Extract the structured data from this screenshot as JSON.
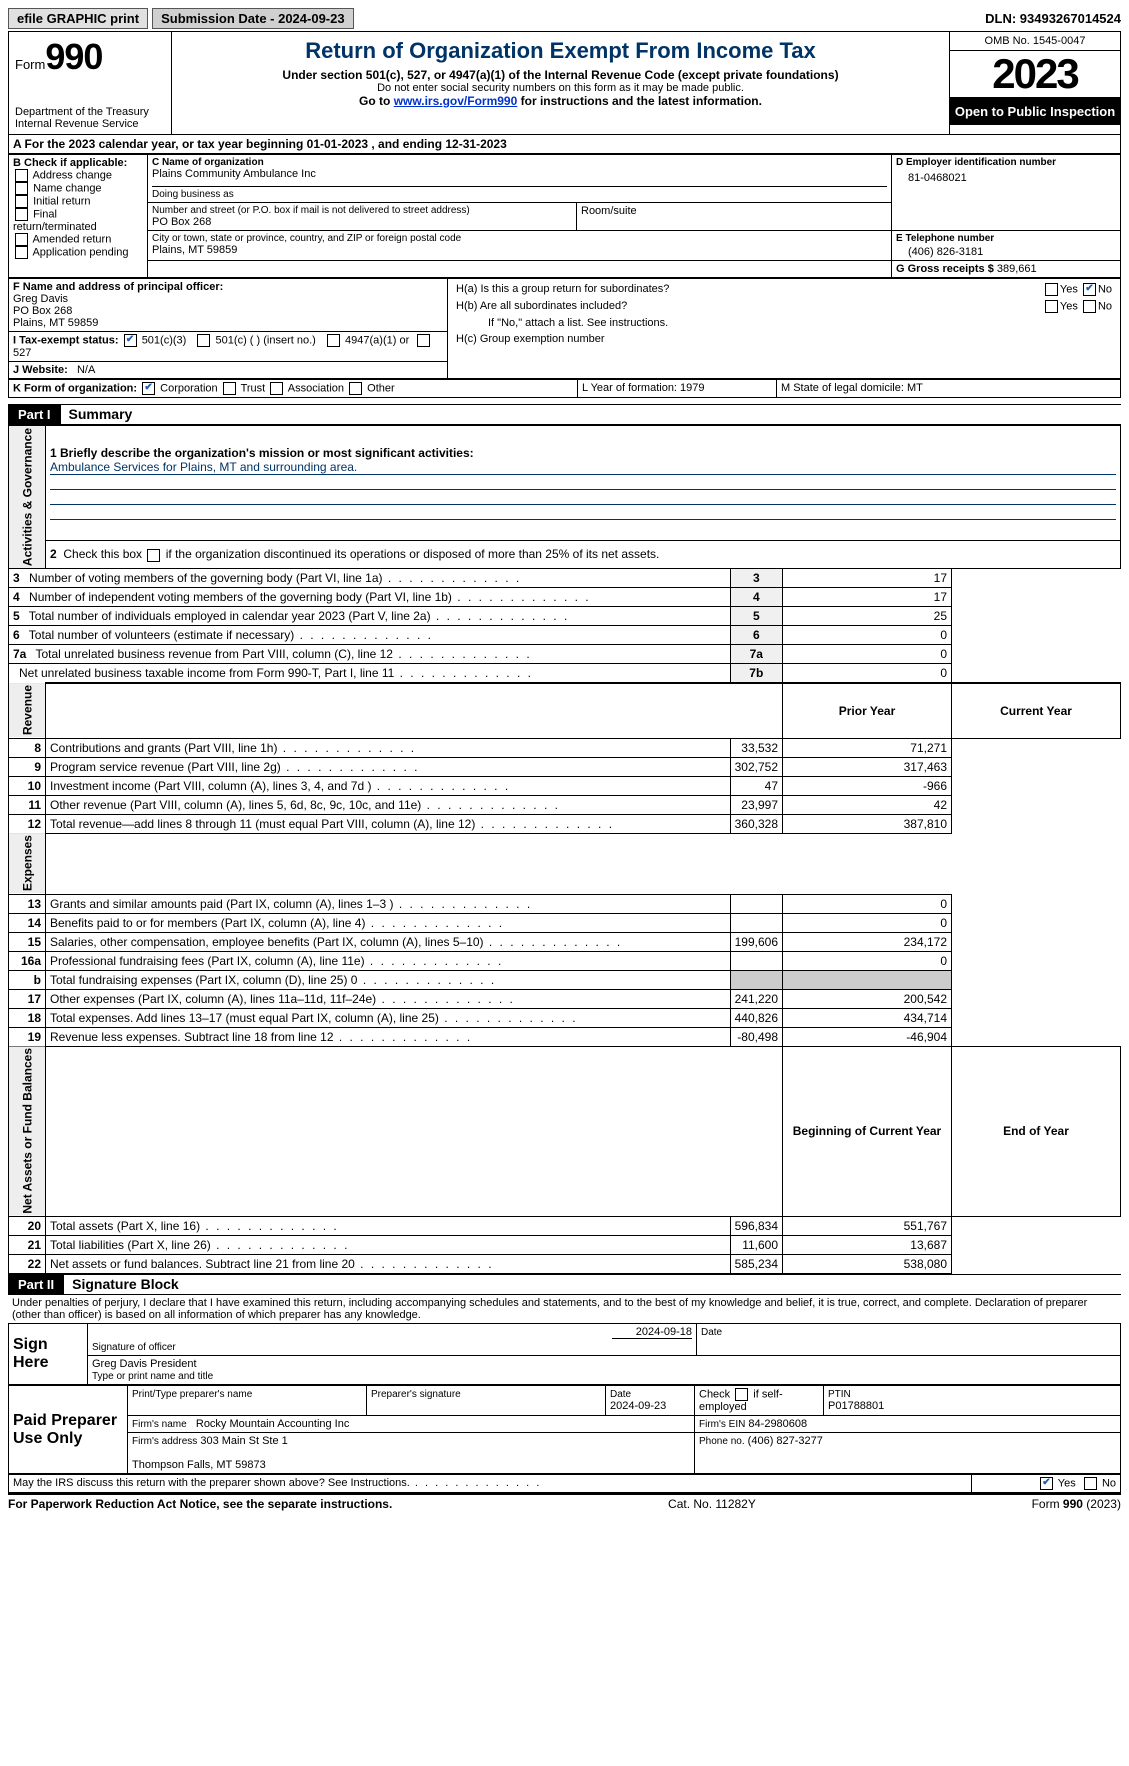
{
  "topbar": {
    "efile_btn": "efile GRAPHIC print",
    "subm_label": "Submission Date - 2024-09-23",
    "dln_label": "DLN: 93493267014524"
  },
  "header": {
    "form_word": "Form",
    "form_num": "990",
    "dept": "Department of the Treasury\nInternal Revenue Service",
    "title": "Return of Organization Exempt From Income Tax",
    "sub1": "Under section 501(c), 527, or 4947(a)(1) of the Internal Revenue Code (except private foundations)",
    "sub2": "Do not enter social security numbers on this form as it may be made public.",
    "sub3_pre": "Go to ",
    "sub3_link": "www.irs.gov/Form990",
    "sub3_post": " for instructions and the latest information.",
    "omb": "OMB No. 1545-0047",
    "year": "2023",
    "open": "Open to Public Inspection"
  },
  "lineA": "A For the 2023 calendar year, or tax year beginning 01-01-2023   , and ending 12-31-2023",
  "B": {
    "label": "B Check if applicable:",
    "opts": [
      "Address change",
      "Name change",
      "Initial return",
      "Final return/terminated",
      "Amended return",
      "Application pending"
    ]
  },
  "C": {
    "name_lbl": "C Name of organization",
    "name": "Plains Community Ambulance Inc",
    "dba_lbl": "Doing business as",
    "street_lbl": "Number and street (or P.O. box if mail is not delivered to street address)",
    "room_lbl": "Room/suite",
    "street": "PO Box 268",
    "city_lbl": "City or town, state or province, country, and ZIP or foreign postal code",
    "city": "Plains, MT  59859"
  },
  "D": {
    "lbl": "D Employer identification number",
    "val": "81-0468021"
  },
  "E": {
    "lbl": "E Telephone number",
    "val": "(406) 826-3181"
  },
  "G": {
    "lbl": "G Gross receipts $",
    "val": "389,661"
  },
  "F": {
    "lbl": "F  Name and address of principal officer:",
    "val": "Greg Davis\nPO Box 268\nPlains, MT  59859"
  },
  "H": {
    "a": "H(a)  Is this a group return for subordinates?",
    "b": "H(b)  Are all subordinates included?",
    "note": "If \"No,\" attach a list. See instructions.",
    "c": "H(c)  Group exemption number",
    "yes": "Yes",
    "no": "No"
  },
  "I": {
    "lbl": "I   Tax-exempt status:",
    "o1": "501(c)(3)",
    "o2": "501(c) (   ) (insert no.)",
    "o3": "4947(a)(1) or",
    "o4": "527"
  },
  "J": {
    "lbl": "J   Website:",
    "val": "N/A"
  },
  "K": {
    "lbl": "K Form of organization:",
    "o1": "Corporation",
    "o2": "Trust",
    "o3": "Association",
    "o4": "Other"
  },
  "L": {
    "lbl": "L Year of formation: 1979"
  },
  "M": {
    "lbl": "M State of legal domicile: MT"
  },
  "parts": {
    "p1": "Part I",
    "p1t": "Summary",
    "p2": "Part II",
    "p2t": "Signature Block"
  },
  "sideLabels": {
    "gov": "Activities & Governance",
    "rev": "Revenue",
    "exp": "Expenses",
    "net": "Net Assets or Fund Balances"
  },
  "summary": {
    "q1_lbl": "1  Briefly describe the organization's mission or most significant activities:",
    "q1_val": "Ambulance Services for Plains, MT and surrounding area.",
    "q2": "2   Check this box         if the organization discontinued its operations or disposed of more than 25% of its net assets.",
    "lines_gov": [
      {
        "n": "3",
        "t": "Number of voting members of the governing body (Part VI, line 1a)",
        "box": "3",
        "v": "17"
      },
      {
        "n": "4",
        "t": "Number of independent voting members of the governing body (Part VI, line 1b)",
        "box": "4",
        "v": "17"
      },
      {
        "n": "5",
        "t": "Total number of individuals employed in calendar year 2023 (Part V, line 2a)",
        "box": "5",
        "v": "25"
      },
      {
        "n": "6",
        "t": "Total number of volunteers (estimate if necessary)",
        "box": "6",
        "v": "0"
      },
      {
        "n": "7a",
        "t": "Total unrelated business revenue from Part VIII, column (C), line 12",
        "box": "7a",
        "v": "0"
      },
      {
        "n": "",
        "t": "Net unrelated business taxable income from Form 990-T, Part I, line 11",
        "box": "7b",
        "v": "0"
      }
    ],
    "col_prior": "Prior Year",
    "col_curr": "Current Year",
    "rev": [
      {
        "n": "8",
        "t": "Contributions and grants (Part VIII, line 1h)",
        "p": "33,532",
        "c": "71,271"
      },
      {
        "n": "9",
        "t": "Program service revenue (Part VIII, line 2g)",
        "p": "302,752",
        "c": "317,463"
      },
      {
        "n": "10",
        "t": "Investment income (Part VIII, column (A), lines 3, 4, and 7d )",
        "p": "47",
        "c": "-966"
      },
      {
        "n": "11",
        "t": "Other revenue (Part VIII, column (A), lines 5, 6d, 8c, 9c, 10c, and 11e)",
        "p": "23,997",
        "c": "42"
      },
      {
        "n": "12",
        "t": "Total revenue—add lines 8 through 11 (must equal Part VIII, column (A), line 12)",
        "p": "360,328",
        "c": "387,810"
      }
    ],
    "exp": [
      {
        "n": "13",
        "t": "Grants and similar amounts paid (Part IX, column (A), lines 1–3 )",
        "p": "",
        "c": "0"
      },
      {
        "n": "14",
        "t": "Benefits paid to or for members (Part IX, column (A), line 4)",
        "p": "",
        "c": "0"
      },
      {
        "n": "15",
        "t": "Salaries, other compensation, employee benefits (Part IX, column (A), lines 5–10)",
        "p": "199,606",
        "c": "234,172"
      },
      {
        "n": "16a",
        "t": "Professional fundraising fees (Part IX, column (A), line 11e)",
        "p": "",
        "c": "0"
      },
      {
        "n": "b",
        "t": "Total fundraising expenses (Part IX, column (D), line 25) 0",
        "p": "SHADE",
        "c": "SHADE"
      },
      {
        "n": "17",
        "t": "Other expenses (Part IX, column (A), lines 11a–11d, 11f–24e)",
        "p": "241,220",
        "c": "200,542"
      },
      {
        "n": "18",
        "t": "Total expenses. Add lines 13–17 (must equal Part IX, column (A), line 25)",
        "p": "440,826",
        "c": "434,714"
      },
      {
        "n": "19",
        "t": "Revenue less expenses. Subtract line 18 from line 12",
        "p": "-80,498",
        "c": "-46,904"
      }
    ],
    "col_boy": "Beginning of Current Year",
    "col_eoy": "End of Year",
    "net": [
      {
        "n": "20",
        "t": "Total assets (Part X, line 16)",
        "p": "596,834",
        "c": "551,767"
      },
      {
        "n": "21",
        "t": "Total liabilities (Part X, line 26)",
        "p": "11,600",
        "c": "13,687"
      },
      {
        "n": "22",
        "t": "Net assets or fund balances. Subtract line 21 from line 20",
        "p": "585,234",
        "c": "538,080"
      }
    ]
  },
  "sig": {
    "decl": "Under penalties of perjury, I declare that I have examined this return, including accompanying schedules and statements, and to the best of my knowledge and belief, it is true, correct, and complete. Declaration of preparer (other than officer) is based on all information of which preparer has any knowledge.",
    "sign_here": "Sign Here",
    "sig_officer_lbl": "Signature of officer",
    "date_lbl": "Date",
    "sig_date": "2024-09-18",
    "typed_lbl": "Type or print name and title",
    "typed": "Greg Davis  President",
    "paid": "Paid Preparer Use Only",
    "pname_lbl": "Print/Type preparer's name",
    "psig_lbl": "Preparer's signature",
    "pdate_lbl": "Date",
    "pdate": "2024-09-23",
    "ck_self": "Check         if self-employed",
    "ptin_lbl": "PTIN",
    "ptin": "P01788801",
    "firm_lbl": "Firm's name",
    "firm": "Rocky Mountain Accounting Inc",
    "fein_lbl": "Firm's EIN",
    "fein": "84-2980608",
    "faddr_lbl": "Firm's address",
    "faddr": "303 Main St Ste 1\n\nThompson Falls, MT  59873",
    "fphone_lbl": "Phone no.",
    "fphone": "(406) 827-3277",
    "discuss": "May the IRS discuss this return with the preparer shown above? See Instructions."
  },
  "footer": {
    "paperwork": "For Paperwork Reduction Act Notice, see the separate instructions.",
    "cat": "Cat. No. 11282Y",
    "form": "Form 990 (2023)"
  }
}
